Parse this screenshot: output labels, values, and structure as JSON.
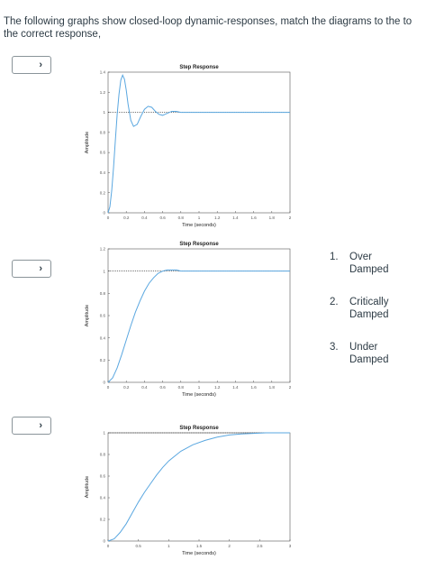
{
  "question": {
    "text": "The following graphs show closed-loop dynamic-responses, match the diagrams to the  to the correct response,"
  },
  "dropdowns": [
    {
      "icon": "chevron-down-icon",
      "glyph": "›",
      "selected": ""
    },
    {
      "icon": "chevron-down-icon",
      "glyph": "›",
      "selected": ""
    },
    {
      "icon": "chevron-down-icon",
      "glyph": "›",
      "selected": ""
    }
  ],
  "options": [
    {
      "number": "1.",
      "lines": [
        "Over",
        "Damped"
      ]
    },
    {
      "number": "2.",
      "lines": [
        "Critically",
        "Damped"
      ]
    },
    {
      "number": "3.",
      "lines": [
        "Under",
        "Damped"
      ]
    }
  ],
  "colors": {
    "curve": "#5aa7e0",
    "reference": "#222222",
    "axis_box": "#555555"
  },
  "chart_data": [
    {
      "type": "line",
      "title": "Step Response",
      "xlabel": "Time (seconds)",
      "ylabel": "Amplitude",
      "xlim": [
        0,
        2
      ],
      "ylim": [
        0,
        1.4
      ],
      "xticks": [
        "0",
        "0.2",
        "0.4",
        "0.6",
        "0.8",
        "1",
        "1.2",
        "1.4",
        "1.6",
        "1.8",
        "2"
      ],
      "yticks": [
        "0",
        "0.2",
        "0.4",
        "0.6",
        "0.8",
        "1",
        "1.2",
        "1.4"
      ],
      "reference": 1,
      "series": [
        {
          "x": [
            0,
            0.02,
            0.04,
            0.06,
            0.08,
            0.1,
            0.12,
            0.14,
            0.16,
            0.18,
            0.2,
            0.22,
            0.25,
            0.28,
            0.32,
            0.36,
            0.4,
            0.44,
            0.48,
            0.52,
            0.56,
            0.6,
            0.65,
            0.7,
            0.75,
            0.8,
            0.9,
            1.0,
            1.2,
            1.4,
            1.6,
            1.8,
            2.0
          ],
          "y": [
            0,
            0.06,
            0.22,
            0.45,
            0.72,
            0.98,
            1.18,
            1.32,
            1.37,
            1.33,
            1.22,
            1.08,
            0.92,
            0.86,
            0.88,
            0.96,
            1.03,
            1.06,
            1.05,
            1.01,
            0.98,
            0.97,
            0.99,
            1.01,
            1.01,
            1.0,
            1.0,
            1.0,
            1.0,
            1.0,
            1.0,
            1.0,
            1.0
          ]
        }
      ]
    },
    {
      "type": "line",
      "title": "Step Response",
      "xlabel": "Time (seconds)",
      "ylabel": "Amplitude",
      "xlim": [
        0,
        2
      ],
      "ylim": [
        0,
        1.2
      ],
      "xticks": [
        "0",
        "0.2",
        "0.4",
        "0.6",
        "0.8",
        "1",
        "1.2",
        "1.4",
        "1.6",
        "1.8",
        "2"
      ],
      "yticks": [
        "0",
        "0.2",
        "0.4",
        "0.6",
        "0.8",
        "1",
        "1.2"
      ],
      "reference": 1,
      "series": [
        {
          "x": [
            0,
            0.05,
            0.1,
            0.15,
            0.2,
            0.25,
            0.3,
            0.35,
            0.4,
            0.45,
            0.5,
            0.55,
            0.6,
            0.65,
            0.7,
            0.75,
            0.8,
            0.9,
            1.0,
            1.2,
            1.4,
            1.6,
            1.8,
            2.0
          ],
          "y": [
            0,
            0.04,
            0.13,
            0.25,
            0.38,
            0.51,
            0.63,
            0.73,
            0.82,
            0.89,
            0.94,
            0.98,
            1.0,
            1.01,
            1.01,
            1.01,
            1.0,
            1.0,
            1.0,
            1.0,
            1.0,
            1.0,
            1.0,
            1.0
          ]
        }
      ]
    },
    {
      "type": "line",
      "title": "Step Response",
      "xlabel": "Time (seconds)",
      "ylabel": "Amplitude",
      "xlim": [
        0,
        3
      ],
      "ylim": [
        0,
        1
      ],
      "xticks": [
        "0",
        "0.5",
        "1",
        "1.5",
        "2",
        "2.5",
        "3"
      ],
      "yticks": [
        "0",
        "0.2",
        "0.4",
        "0.6",
        "0.8",
        "1"
      ],
      "reference": 1,
      "series": [
        {
          "x": [
            0,
            0.1,
            0.2,
            0.3,
            0.4,
            0.5,
            0.6,
            0.7,
            0.8,
            0.9,
            1.0,
            1.2,
            1.4,
            1.6,
            1.8,
            2.0,
            2.2,
            2.4,
            2.6,
            2.8,
            3.0
          ],
          "y": [
            0,
            0.02,
            0.08,
            0.16,
            0.26,
            0.36,
            0.45,
            0.53,
            0.61,
            0.68,
            0.74,
            0.83,
            0.89,
            0.93,
            0.96,
            0.98,
            0.99,
            0.995,
            1.0,
            1.0,
            1.0
          ]
        }
      ]
    }
  ]
}
